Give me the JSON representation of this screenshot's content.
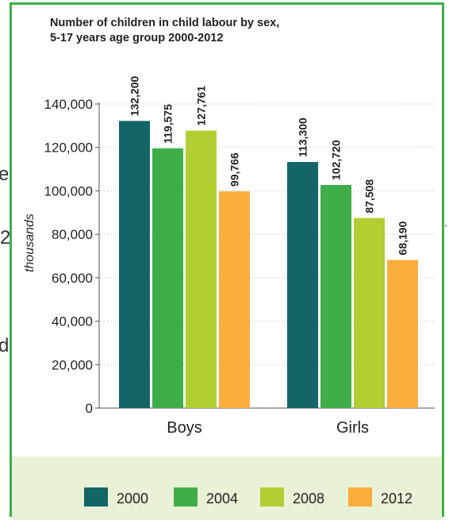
{
  "page": {
    "left_fragments": [
      "e",
      "2",
      "d"
    ],
    "right_fragment": "."
  },
  "colors": {
    "border": "#3fae49",
    "legend_band": "#e9f1d6",
    "grid": "#cfcfcf",
    "text": "#231f20"
  },
  "chart_data": {
    "type": "bar",
    "title": "Number of children in child labour by sex,",
    "subtitle": "5-17 years age group 2000-2012",
    "ylabel": "thousands",
    "xlabel": "",
    "categories": [
      "Boys",
      "Girls"
    ],
    "series": [
      {
        "name": "2000",
        "color": "#136567",
        "values": [
          132200,
          113300
        ],
        "labels": [
          "132,200",
          "113,300"
        ]
      },
      {
        "name": "2004",
        "color": "#3fae49",
        "values": [
          119575,
          102720
        ],
        "labels": [
          "119,575",
          "102,720"
        ]
      },
      {
        "name": "2008",
        "color": "#b1cf33",
        "values": [
          127761,
          87508
        ],
        "labels": [
          "127,761",
          "87,508"
        ]
      },
      {
        "name": "2012",
        "color": "#fbae3c",
        "values": [
          99766,
          68190
        ],
        "labels": [
          "99,766",
          "68,190"
        ]
      }
    ],
    "yticks": [
      0,
      20000,
      40000,
      60000,
      80000,
      100000,
      120000,
      140000
    ],
    "ytick_labels": [
      "0",
      "20,000",
      "40,000",
      "60,000",
      "80,000",
      "100,000",
      "120,000",
      "140,000"
    ],
    "ylim": [
      0,
      140000
    ],
    "grid": true,
    "legend": {
      "position": "bottom",
      "entries": [
        "2000",
        "2004",
        "2008",
        "2012"
      ]
    }
  }
}
